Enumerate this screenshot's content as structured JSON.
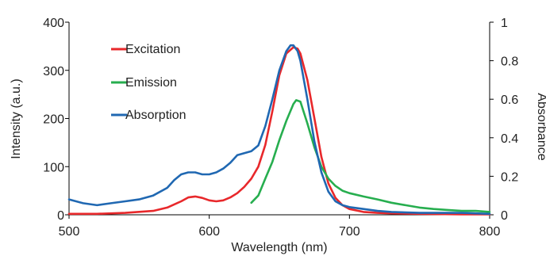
{
  "chart_data": {
    "type": "line",
    "title": "",
    "xlabel": "Wavelength (nm)",
    "ylabel": "Intensity (a.u.)",
    "y2label": "Absorbance",
    "xlim": [
      500,
      800
    ],
    "ylim": [
      0,
      400
    ],
    "y2lim": [
      0,
      1
    ],
    "xticks": [
      "500",
      "600",
      "700",
      "800"
    ],
    "yticks": [
      "0",
      "100",
      "200",
      "300",
      "400"
    ],
    "y2ticks": [
      "0",
      "0.2",
      "0.4",
      "0.6",
      "0.8",
      "1"
    ],
    "grid": false,
    "legend_position": "top-left",
    "series": [
      {
        "name": "Excitation",
        "axis": "left",
        "color": "#e8282b",
        "x": [
          500,
          520,
          540,
          560,
          570,
          580,
          585,
          590,
          595,
          600,
          605,
          610,
          615,
          620,
          625,
          630,
          635,
          640,
          645,
          650,
          655,
          660,
          663,
          665,
          670,
          675,
          680,
          685,
          690,
          695,
          700,
          710,
          720,
          730,
          750,
          780,
          800
        ],
        "y": [
          2,
          2,
          4,
          8,
          15,
          28,
          36,
          38,
          35,
          30,
          28,
          30,
          36,
          45,
          58,
          75,
          100,
          145,
          215,
          290,
          335,
          348,
          345,
          335,
          280,
          200,
          120,
          65,
          35,
          20,
          12,
          6,
          4,
          3,
          2,
          1,
          1
        ]
      },
      {
        "name": "Emission",
        "axis": "left",
        "color": "#27ae4f",
        "x": [
          630,
          635,
          640,
          645,
          650,
          655,
          660,
          662,
          665,
          670,
          675,
          680,
          685,
          690,
          695,
          700,
          710,
          720,
          730,
          740,
          750,
          760,
          770,
          780,
          790,
          800
        ],
        "y": [
          25,
          40,
          75,
          110,
          155,
          195,
          230,
          238,
          235,
          190,
          140,
          100,
          75,
          60,
          50,
          45,
          38,
          32,
          25,
          20,
          15,
          12,
          10,
          8,
          8,
          6
        ]
      },
      {
        "name": "Absorption",
        "axis": "right",
        "color": "#2068b2",
        "x": [
          500,
          510,
          520,
          530,
          540,
          550,
          560,
          570,
          575,
          580,
          585,
          590,
          595,
          600,
          605,
          610,
          615,
          620,
          625,
          630,
          635,
          640,
          645,
          650,
          655,
          658,
          660,
          663,
          665,
          670,
          675,
          680,
          685,
          690,
          695,
          700,
          710,
          720,
          730,
          750,
          780,
          800
        ],
        "y": [
          0.08,
          0.06,
          0.05,
          0.06,
          0.07,
          0.08,
          0.1,
          0.14,
          0.18,
          0.21,
          0.22,
          0.22,
          0.21,
          0.21,
          0.22,
          0.24,
          0.27,
          0.31,
          0.32,
          0.33,
          0.36,
          0.46,
          0.6,
          0.75,
          0.85,
          0.88,
          0.88,
          0.85,
          0.8,
          0.6,
          0.38,
          0.22,
          0.12,
          0.07,
          0.05,
          0.04,
          0.03,
          0.02,
          0.015,
          0.01,
          0.01,
          0.005
        ]
      }
    ]
  }
}
